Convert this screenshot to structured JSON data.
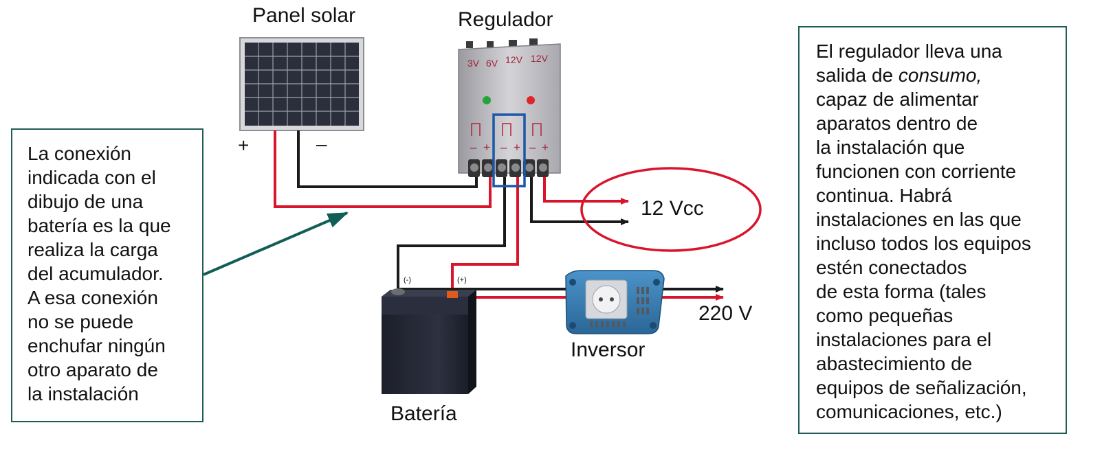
{
  "components": {
    "panel": "Panel solar",
    "regulator": "Regulador",
    "battery": "Batería",
    "inverter": "Inversor"
  },
  "panel_terminals": {
    "plus": "+",
    "minus": "–"
  },
  "regulator_voltages": [
    "3V",
    "6V",
    "12V",
    "12V"
  ],
  "regulator_polarity": {
    "minus": "–",
    "plus": "+"
  },
  "battery_terminals": {
    "negative": "(-)",
    "positive": "(+)"
  },
  "outputs": {
    "dc": "12 Vcc",
    "ac": "220 V"
  },
  "left_note": {
    "lines": [
      "La conexión",
      "indicada con el",
      "dibujo de una",
      "batería es la que",
      "realiza la carga",
      "del acumulador.",
      "A esa conexión",
      "no se puede",
      "enchufar ningún",
      "otro aparato de",
      "la instalación"
    ]
  },
  "right_note": {
    "line1": "El regulador lleva una",
    "line2_prefix": "salida de ",
    "line2_emph": "consumo,",
    "lines": [
      "capaz de alimentar",
      "aparatos dentro de",
      "la instalación que",
      "funcionen con corriente",
      "continua. Habrá",
      "instalaciones en las que",
      "incluso todos los equipos",
      "estén conectados",
      "de esta forma (tales",
      "como pequeñas",
      "instalaciones para el",
      "abastecimiento de",
      "equipos de señalización,",
      "comunicaciones, etc.)"
    ]
  },
  "colors": {
    "wire_positive": "#d9142b",
    "wire_negative": "#1a1a1a",
    "highlight_box": "#1b57a6",
    "ellipse": "#d9142b",
    "pointer_arrow": "#115e55",
    "note_border": "#1f5c55"
  }
}
